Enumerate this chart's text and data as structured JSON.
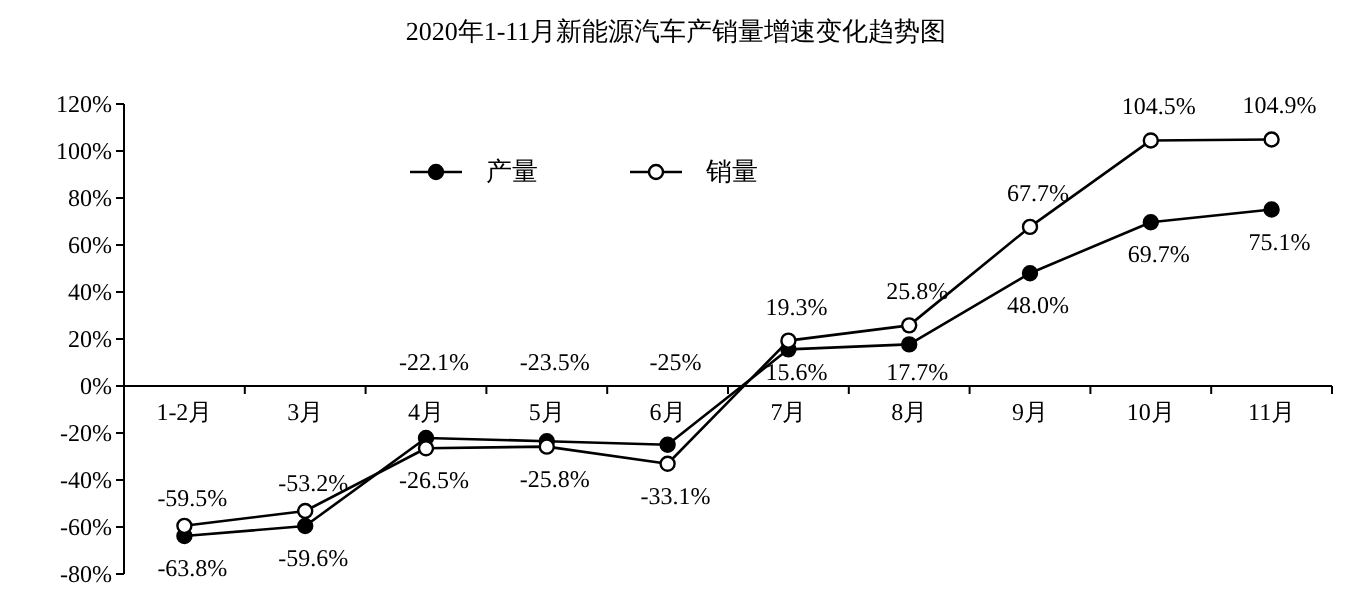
{
  "chart_data": {
    "type": "line",
    "title": "2020年1-11月新能源汽车产销量增速变化趋势图",
    "categories": [
      "1-2月",
      "3月",
      "4月",
      "5月",
      "6月",
      "7月",
      "8月",
      "9月",
      "10月",
      "11月"
    ],
    "series": [
      {
        "name": "产量",
        "color": "#000000",
        "marker": "circle",
        "values": [
          -63.8,
          -59.6,
          -22.1,
          -23.5,
          -25,
          15.6,
          17.7,
          48.0,
          69.7,
          75.1
        ],
        "value_labels": [
          "-63.8%",
          "-59.6%",
          "-22.1%",
          "-23.5%",
          "-25%",
          "15.6%",
          "17.7%",
          "48.0%",
          "69.7%",
          "75.1%"
        ]
      },
      {
        "name": "销量",
        "color": "#000000",
        "marker": "circle",
        "values": [
          -59.5,
          -53.2,
          -26.5,
          -25.8,
          -33.1,
          19.3,
          25.8,
          67.7,
          104.5,
          104.9
        ],
        "value_labels": [
          "-59.5%",
          "-53.2%",
          "-26.5%",
          "-25.8%",
          "-33.1%",
          "19.3%",
          "25.8%",
          "67.7%",
          "104.5%",
          "104.9%"
        ]
      }
    ],
    "ylim": [
      -80,
      120
    ],
    "yticks": [
      {
        "value": -80,
        "label": "-80%"
      },
      {
        "value": -60,
        "label": "-60%"
      },
      {
        "value": -40,
        "label": "-40%"
      },
      {
        "value": -20,
        "label": "-20%"
      },
      {
        "value": 0,
        "label": "0%"
      },
      {
        "value": 20,
        "label": "20%"
      },
      {
        "value": 40,
        "label": "40%"
      },
      {
        "value": 60,
        "label": "60%"
      },
      {
        "value": 80,
        "label": "80%"
      },
      {
        "value": 100,
        "label": "100%"
      },
      {
        "value": 120,
        "label": "120%"
      }
    ],
    "grid": false,
    "legend": "top",
    "line_style": "solid"
  }
}
